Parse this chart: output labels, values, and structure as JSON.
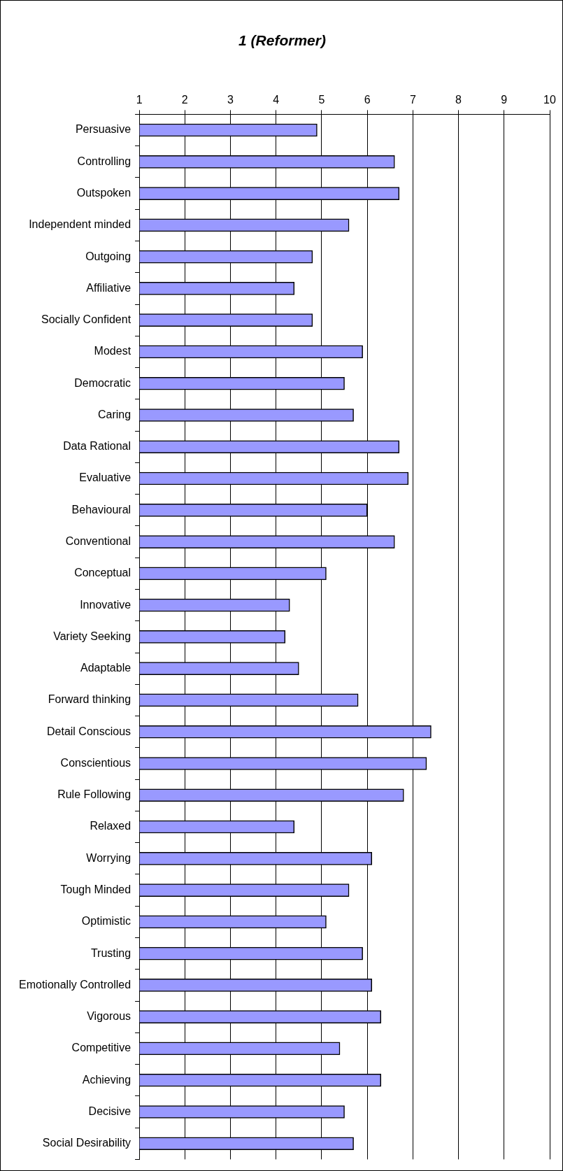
{
  "chart_data": {
    "type": "bar",
    "orientation": "horizontal",
    "title": "1 (Reformer)",
    "categories": [
      "Persuasive",
      "Controlling",
      "Outspoken",
      "Independent minded",
      "Outgoing",
      "Affiliative",
      "Socially Confident",
      "Modest",
      "Democratic",
      "Caring",
      "Data Rational",
      "Evaluative",
      "Behavioural",
      "Conventional",
      "Conceptual",
      "Innovative",
      "Variety Seeking",
      "Adaptable",
      "Forward thinking",
      "Detail Conscious",
      "Conscientious",
      "Rule Following",
      "Relaxed",
      "Worrying",
      "Tough Minded",
      "Optimistic",
      "Trusting",
      "Emotionally Controlled",
      "Vigorous",
      "Competitive",
      "Achieving",
      "Decisive",
      "Social Desirability"
    ],
    "values": [
      4.9,
      6.6,
      6.7,
      5.6,
      4.8,
      4.4,
      4.8,
      5.9,
      5.5,
      5.7,
      6.7,
      6.9,
      6.0,
      6.6,
      5.1,
      4.3,
      4.2,
      4.5,
      5.8,
      7.4,
      7.3,
      6.8,
      4.4,
      6.1,
      5.6,
      5.1,
      5.9,
      6.1,
      6.3,
      5.4,
      6.3,
      5.5,
      5.7
    ],
    "color": "#9999ff",
    "xlim": [
      1,
      10
    ],
    "xticks": [
      1,
      2,
      3,
      4,
      5,
      6,
      7,
      8,
      9,
      10
    ],
    "grid": "x",
    "legend": false
  }
}
